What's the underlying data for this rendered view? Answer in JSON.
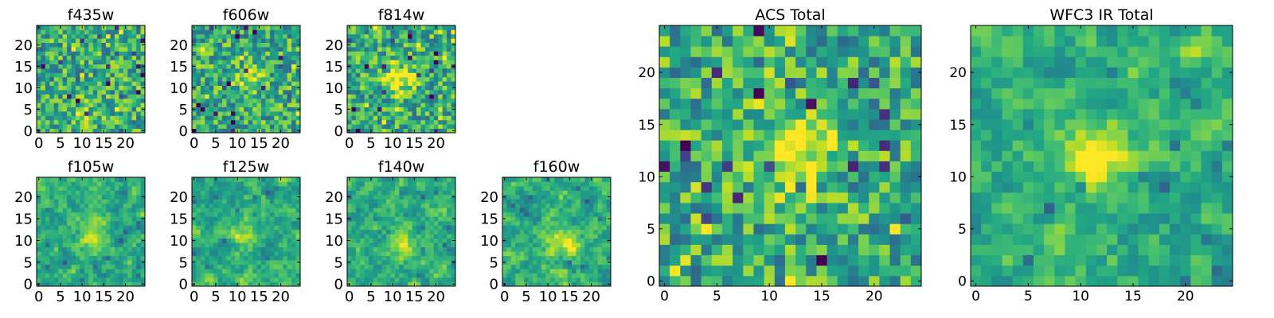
{
  "figure": {
    "colormap": "viridis",
    "background": "#ffffff",
    "axis_color": "#000000",
    "value_range": [
      0,
      1
    ]
  },
  "chart_data": [
    {
      "type": "heatmap",
      "title": "f435w",
      "grid_size": 25,
      "xticks": [
        "0",
        "5",
        "10",
        "15",
        "20"
      ],
      "yticks": [
        "0",
        "5",
        "10",
        "15",
        "20"
      ],
      "seed": 435,
      "peak": {
        "x": 11,
        "y": 4,
        "strength": 0.15
      },
      "smooth": 0
    },
    {
      "type": "heatmap",
      "title": "f606w",
      "grid_size": 25,
      "xticks": [
        "0",
        "5",
        "10",
        "15",
        "20"
      ],
      "yticks": [
        "0",
        "5",
        "10",
        "15",
        "20"
      ],
      "seed": 606,
      "peak": {
        "x": 13,
        "y": 12,
        "strength": 0.3
      },
      "smooth": 0
    },
    {
      "type": "heatmap",
      "title": "f814w",
      "grid_size": 25,
      "xticks": [
        "0",
        "5",
        "10",
        "15",
        "20"
      ],
      "yticks": [
        "0",
        "5",
        "10",
        "15",
        "20"
      ],
      "seed": 814,
      "peak": {
        "x": 12,
        "y": 12,
        "strength": 0.4
      },
      "smooth": 0
    },
    {
      "type": "heatmap",
      "title": "f105w",
      "grid_size": 25,
      "xticks": [
        "0",
        "5",
        "10",
        "15",
        "20"
      ],
      "yticks": [
        "0",
        "5",
        "10",
        "15",
        "20"
      ],
      "seed": 105,
      "peak": {
        "x": 12,
        "y": 12,
        "strength": 0.35
      },
      "smooth": 1
    },
    {
      "type": "heatmap",
      "title": "f125w",
      "grid_size": 25,
      "xticks": [
        "0",
        "5",
        "10",
        "15",
        "20"
      ],
      "yticks": [
        "0",
        "5",
        "10",
        "15",
        "20"
      ],
      "seed": 125,
      "peak": {
        "x": 12,
        "y": 11,
        "strength": 0.2
      },
      "smooth": 1
    },
    {
      "type": "heatmap",
      "title": "f140w",
      "grid_size": 25,
      "xticks": [
        "0",
        "5",
        "10",
        "15",
        "20"
      ],
      "yticks": [
        "0",
        "5",
        "10",
        "15",
        "20"
      ],
      "seed": 140,
      "peak": {
        "x": 12,
        "y": 10,
        "strength": 0.25
      },
      "smooth": 1
    },
    {
      "type": "heatmap",
      "title": "f160w",
      "grid_size": 25,
      "xticks": [
        "0",
        "5",
        "10",
        "15",
        "20"
      ],
      "yticks": [
        "0",
        "5",
        "10",
        "15",
        "20"
      ],
      "seed": 160,
      "peak": {
        "x": 13,
        "y": 10,
        "strength": 0.35
      },
      "smooth": 1
    },
    {
      "type": "heatmap",
      "title": "ACS Total",
      "grid_size": 25,
      "xticks": [
        "0",
        "5",
        "10",
        "15",
        "20"
      ],
      "yticks": [
        "0",
        "5",
        "10",
        "15",
        "20"
      ],
      "seed": 999,
      "peak": {
        "x": 12,
        "y": 12,
        "strength": 0.45
      },
      "smooth": 0
    },
    {
      "type": "heatmap",
      "title": "WFC3 IR Total",
      "grid_size": 25,
      "xticks": [
        "0",
        "5",
        "10",
        "15",
        "20"
      ],
      "yticks": [
        "0",
        "5",
        "10",
        "15",
        "20"
      ],
      "seed": 3,
      "peak": {
        "x": 11,
        "y": 12,
        "strength": 0.45
      },
      "smooth": 1
    }
  ]
}
